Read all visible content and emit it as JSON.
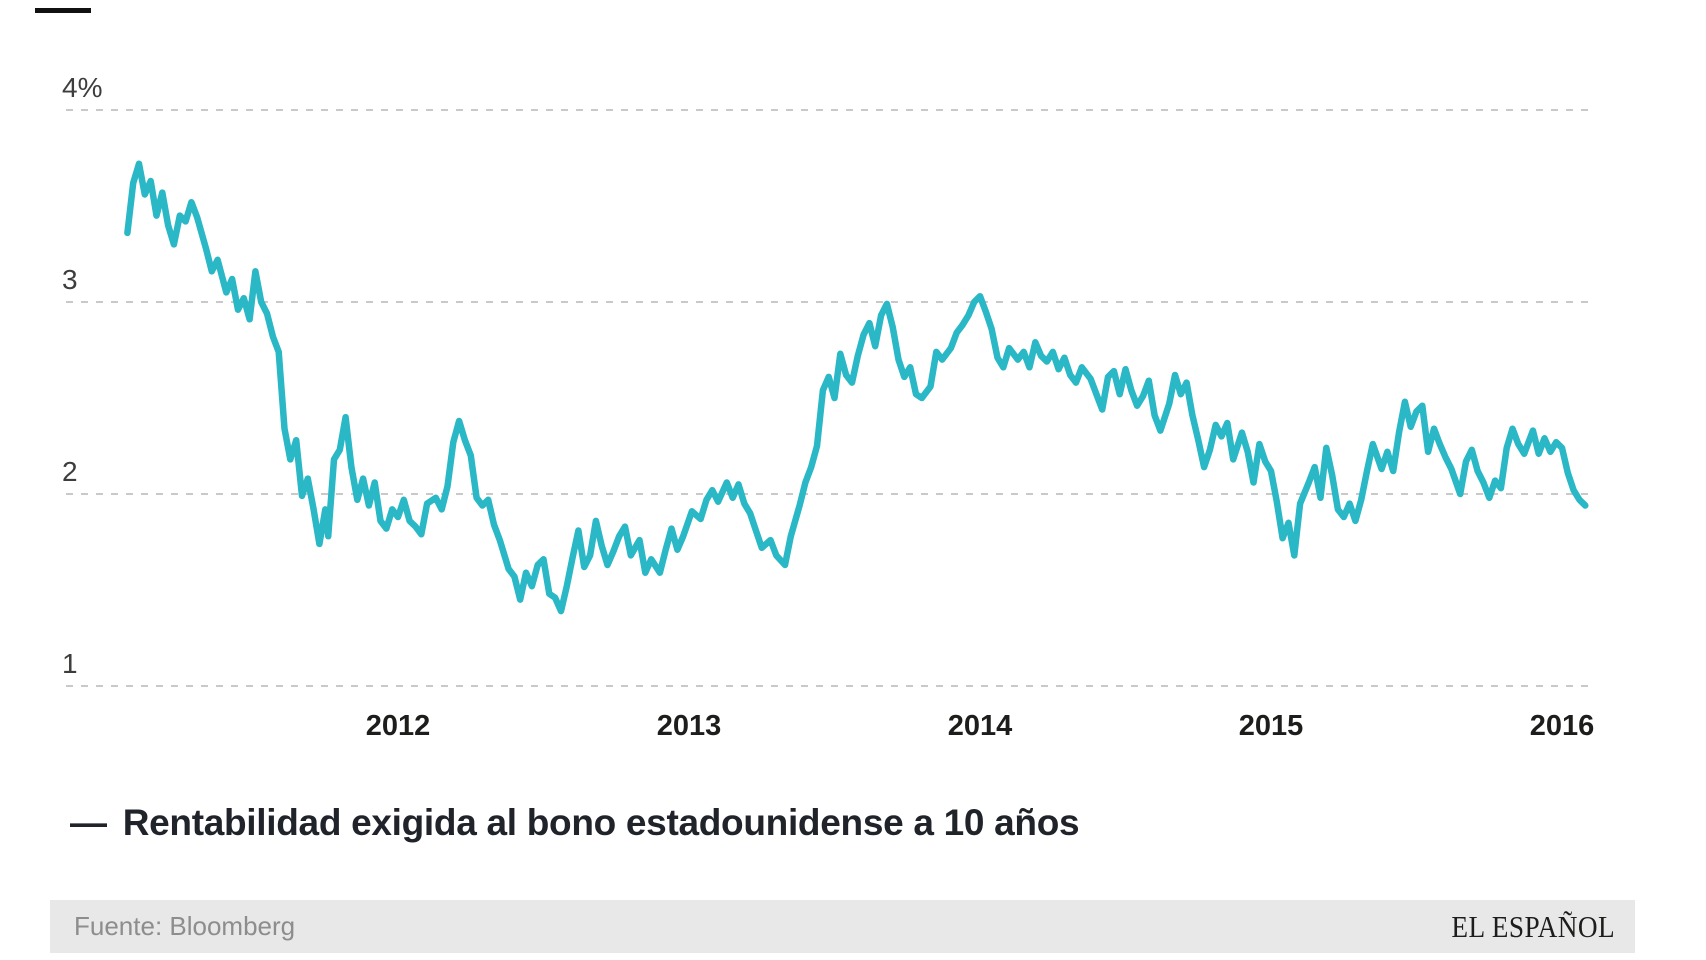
{
  "brand": {
    "masthead": "EL ESPAÑOL"
  },
  "source": {
    "label": "Fuente: Bloomberg"
  },
  "legend": {
    "marker": "—",
    "label": "Rentabilidad exigida al bono estadounidense a 10 años"
  },
  "colors": {
    "line": "#2ab7c6",
    "grid": "#c9c9c9",
    "axis_text": "#3d3d3b",
    "year_text": "#1d1d1b",
    "legend_text": "#20242a",
    "footer_bg": "#e8e8e8",
    "footer_text": "#8d8d8d"
  },
  "chart_data": {
    "type": "line",
    "title": "",
    "xlabel": "",
    "ylabel": "",
    "unit": "%",
    "grid": "horizontal dashed lines at each y tick",
    "legend_position": "below chart, bottom-left",
    "ylim": [
      1,
      4
    ],
    "xlim": [
      2011.0,
      2016.17
    ],
    "y_ticks": [
      {
        "value": 4,
        "label": "4%"
      },
      {
        "value": 3,
        "label": "3"
      },
      {
        "value": 2,
        "label": "2"
      },
      {
        "value": 1,
        "label": "1"
      }
    ],
    "x_ticks": [
      {
        "value": 2012,
        "label": "2012"
      },
      {
        "value": 2013,
        "label": "2013"
      },
      {
        "value": 2014,
        "label": "2014"
      },
      {
        "value": 2015,
        "label": "2015"
      },
      {
        "value": 2016,
        "label": "2016"
      }
    ],
    "series": [
      {
        "name": "Rentabilidad exigida al bono estadounidense a 10 años",
        "x_unit": "year (decimal)",
        "y_unit": "percent",
        "points": [
          [
            2011.07,
            3.36
          ],
          [
            2011.09,
            3.62
          ],
          [
            2011.11,
            3.72
          ],
          [
            2011.13,
            3.56
          ],
          [
            2011.15,
            3.63
          ],
          [
            2011.17,
            3.45
          ],
          [
            2011.19,
            3.57
          ],
          [
            2011.21,
            3.4
          ],
          [
            2011.23,
            3.3
          ],
          [
            2011.25,
            3.45
          ],
          [
            2011.27,
            3.42
          ],
          [
            2011.29,
            3.52
          ],
          [
            2011.31,
            3.44
          ],
          [
            2011.34,
            3.28
          ],
          [
            2011.36,
            3.16
          ],
          [
            2011.38,
            3.22
          ],
          [
            2011.41,
            3.05
          ],
          [
            2011.43,
            3.12
          ],
          [
            2011.45,
            2.96
          ],
          [
            2011.47,
            3.02
          ],
          [
            2011.49,
            2.91
          ],
          [
            2011.51,
            3.16
          ],
          [
            2011.53,
            3.0
          ],
          [
            2011.55,
            2.94
          ],
          [
            2011.57,
            2.82
          ],
          [
            2011.59,
            2.74
          ],
          [
            2011.61,
            2.34
          ],
          [
            2011.63,
            2.18
          ],
          [
            2011.65,
            2.28
          ],
          [
            2011.67,
            1.99
          ],
          [
            2011.69,
            2.08
          ],
          [
            2011.71,
            1.92
          ],
          [
            2011.73,
            1.74
          ],
          [
            2011.75,
            1.92
          ],
          [
            2011.76,
            1.78
          ],
          [
            2011.78,
            2.18
          ],
          [
            2011.8,
            2.23
          ],
          [
            2011.82,
            2.4
          ],
          [
            2011.84,
            2.14
          ],
          [
            2011.86,
            1.97
          ],
          [
            2011.88,
            2.08
          ],
          [
            2011.9,
            1.94
          ],
          [
            2011.92,
            2.06
          ],
          [
            2011.94,
            1.86
          ],
          [
            2011.96,
            1.82
          ],
          [
            2011.98,
            1.92
          ],
          [
            2012.0,
            1.88
          ],
          [
            2012.02,
            1.97
          ],
          [
            2012.04,
            1.86
          ],
          [
            2012.06,
            1.83
          ],
          [
            2012.08,
            1.79
          ],
          [
            2012.1,
            1.95
          ],
          [
            2012.13,
            1.98
          ],
          [
            2012.15,
            1.92
          ],
          [
            2012.17,
            2.04
          ],
          [
            2012.19,
            2.27
          ],
          [
            2012.21,
            2.38
          ],
          [
            2012.23,
            2.28
          ],
          [
            2012.25,
            2.2
          ],
          [
            2012.27,
            1.98
          ],
          [
            2012.29,
            1.94
          ],
          [
            2012.31,
            1.97
          ],
          [
            2012.33,
            1.84
          ],
          [
            2012.35,
            1.76
          ],
          [
            2012.38,
            1.61
          ],
          [
            2012.4,
            1.57
          ],
          [
            2012.42,
            1.45
          ],
          [
            2012.44,
            1.59
          ],
          [
            2012.46,
            1.52
          ],
          [
            2012.48,
            1.63
          ],
          [
            2012.5,
            1.66
          ],
          [
            2012.52,
            1.48
          ],
          [
            2012.54,
            1.46
          ],
          [
            2012.56,
            1.39
          ],
          [
            2012.58,
            1.52
          ],
          [
            2012.6,
            1.67
          ],
          [
            2012.62,
            1.81
          ],
          [
            2012.64,
            1.62
          ],
          [
            2012.66,
            1.68
          ],
          [
            2012.68,
            1.86
          ],
          [
            2012.7,
            1.73
          ],
          [
            2012.72,
            1.63
          ],
          [
            2012.74,
            1.7
          ],
          [
            2012.76,
            1.78
          ],
          [
            2012.78,
            1.83
          ],
          [
            2012.8,
            1.68
          ],
          [
            2012.83,
            1.76
          ],
          [
            2012.85,
            1.59
          ],
          [
            2012.87,
            1.66
          ],
          [
            2012.9,
            1.59
          ],
          [
            2012.92,
            1.71
          ],
          [
            2012.94,
            1.82
          ],
          [
            2012.96,
            1.71
          ],
          [
            2012.98,
            1.78
          ],
          [
            2013.01,
            1.91
          ],
          [
            2013.04,
            1.87
          ],
          [
            2013.06,
            1.97
          ],
          [
            2013.08,
            2.02
          ],
          [
            2013.1,
            1.96
          ],
          [
            2013.13,
            2.06
          ],
          [
            2013.15,
            1.98
          ],
          [
            2013.17,
            2.05
          ],
          [
            2013.19,
            1.95
          ],
          [
            2013.21,
            1.9
          ],
          [
            2013.23,
            1.81
          ],
          [
            2013.25,
            1.72
          ],
          [
            2013.28,
            1.76
          ],
          [
            2013.3,
            1.68
          ],
          [
            2013.33,
            1.63
          ],
          [
            2013.35,
            1.78
          ],
          [
            2013.38,
            1.94
          ],
          [
            2013.4,
            2.06
          ],
          [
            2013.42,
            2.14
          ],
          [
            2013.44,
            2.25
          ],
          [
            2013.46,
            2.54
          ],
          [
            2013.48,
            2.61
          ],
          [
            2013.5,
            2.5
          ],
          [
            2013.52,
            2.73
          ],
          [
            2013.54,
            2.62
          ],
          [
            2013.56,
            2.58
          ],
          [
            2013.58,
            2.72
          ],
          [
            2013.6,
            2.83
          ],
          [
            2013.62,
            2.89
          ],
          [
            2013.64,
            2.77
          ],
          [
            2013.66,
            2.93
          ],
          [
            2013.68,
            2.99
          ],
          [
            2013.7,
            2.87
          ],
          [
            2013.72,
            2.7
          ],
          [
            2013.74,
            2.61
          ],
          [
            2013.76,
            2.66
          ],
          [
            2013.78,
            2.52
          ],
          [
            2013.8,
            2.5
          ],
          [
            2013.83,
            2.56
          ],
          [
            2013.85,
            2.74
          ],
          [
            2013.87,
            2.7
          ],
          [
            2013.9,
            2.76
          ],
          [
            2013.92,
            2.84
          ],
          [
            2013.94,
            2.88
          ],
          [
            2013.96,
            2.93
          ],
          [
            2013.98,
            3.0
          ],
          [
            2014.0,
            3.03
          ],
          [
            2014.02,
            2.95
          ],
          [
            2014.04,
            2.86
          ],
          [
            2014.06,
            2.71
          ],
          [
            2014.08,
            2.66
          ],
          [
            2014.1,
            2.76
          ],
          [
            2014.13,
            2.7
          ],
          [
            2014.15,
            2.74
          ],
          [
            2014.17,
            2.66
          ],
          [
            2014.19,
            2.79
          ],
          [
            2014.21,
            2.72
          ],
          [
            2014.23,
            2.69
          ],
          [
            2014.25,
            2.74
          ],
          [
            2014.27,
            2.65
          ],
          [
            2014.29,
            2.71
          ],
          [
            2014.31,
            2.62
          ],
          [
            2014.33,
            2.58
          ],
          [
            2014.35,
            2.66
          ],
          [
            2014.38,
            2.6
          ],
          [
            2014.4,
            2.52
          ],
          [
            2014.42,
            2.44
          ],
          [
            2014.44,
            2.61
          ],
          [
            2014.46,
            2.64
          ],
          [
            2014.48,
            2.52
          ],
          [
            2014.5,
            2.65
          ],
          [
            2014.52,
            2.54
          ],
          [
            2014.54,
            2.46
          ],
          [
            2014.56,
            2.51
          ],
          [
            2014.58,
            2.59
          ],
          [
            2014.6,
            2.41
          ],
          [
            2014.62,
            2.33
          ],
          [
            2014.65,
            2.47
          ],
          [
            2014.67,
            2.62
          ],
          [
            2014.69,
            2.52
          ],
          [
            2014.71,
            2.58
          ],
          [
            2014.73,
            2.41
          ],
          [
            2014.75,
            2.28
          ],
          [
            2014.77,
            2.14
          ],
          [
            2014.79,
            2.23
          ],
          [
            2014.81,
            2.36
          ],
          [
            2014.83,
            2.3
          ],
          [
            2014.85,
            2.37
          ],
          [
            2014.87,
            2.18
          ],
          [
            2014.9,
            2.32
          ],
          [
            2014.92,
            2.22
          ],
          [
            2014.94,
            2.06
          ],
          [
            2014.96,
            2.26
          ],
          [
            2014.98,
            2.17
          ],
          [
            2015.0,
            2.12
          ],
          [
            2015.02,
            1.96
          ],
          [
            2015.04,
            1.77
          ],
          [
            2015.06,
            1.85
          ],
          [
            2015.08,
            1.68
          ],
          [
            2015.1,
            1.95
          ],
          [
            2015.13,
            2.06
          ],
          [
            2015.15,
            2.14
          ],
          [
            2015.17,
            1.98
          ],
          [
            2015.19,
            2.24
          ],
          [
            2015.21,
            2.1
          ],
          [
            2015.23,
            1.92
          ],
          [
            2015.25,
            1.88
          ],
          [
            2015.27,
            1.95
          ],
          [
            2015.29,
            1.86
          ],
          [
            2015.31,
            1.97
          ],
          [
            2015.33,
            2.12
          ],
          [
            2015.35,
            2.26
          ],
          [
            2015.38,
            2.13
          ],
          [
            2015.4,
            2.22
          ],
          [
            2015.42,
            2.12
          ],
          [
            2015.44,
            2.32
          ],
          [
            2015.46,
            2.48
          ],
          [
            2015.48,
            2.35
          ],
          [
            2015.5,
            2.43
          ],
          [
            2015.52,
            2.46
          ],
          [
            2015.54,
            2.22
          ],
          [
            2015.56,
            2.34
          ],
          [
            2015.58,
            2.26
          ],
          [
            2015.6,
            2.19
          ],
          [
            2015.62,
            2.13
          ],
          [
            2015.65,
            2.0
          ],
          [
            2015.67,
            2.17
          ],
          [
            2015.69,
            2.23
          ],
          [
            2015.71,
            2.12
          ],
          [
            2015.73,
            2.06
          ],
          [
            2015.75,
            1.98
          ],
          [
            2015.77,
            2.07
          ],
          [
            2015.79,
            2.03
          ],
          [
            2015.81,
            2.24
          ],
          [
            2015.83,
            2.34
          ],
          [
            2015.85,
            2.26
          ],
          [
            2015.87,
            2.21
          ],
          [
            2015.9,
            2.33
          ],
          [
            2015.92,
            2.21
          ],
          [
            2015.94,
            2.29
          ],
          [
            2015.96,
            2.22
          ],
          [
            2015.98,
            2.27
          ],
          [
            2016.0,
            2.24
          ],
          [
            2016.02,
            2.11
          ],
          [
            2016.04,
            2.02
          ],
          [
            2016.06,
            1.97
          ],
          [
            2016.08,
            1.94
          ]
        ]
      }
    ]
  }
}
